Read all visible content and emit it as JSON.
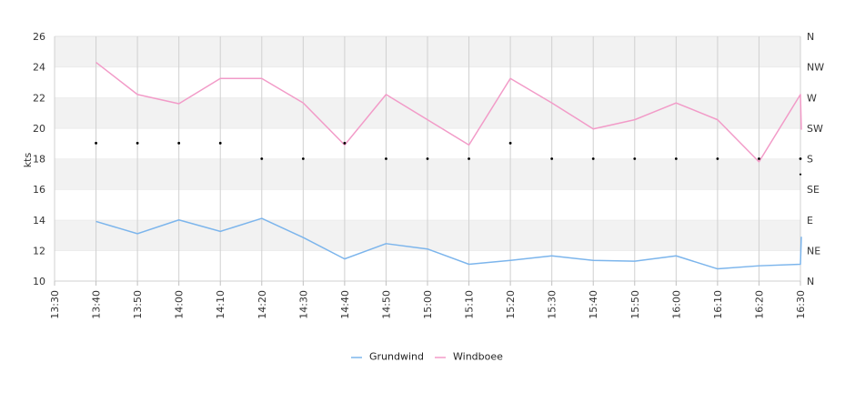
{
  "chart_data": {
    "type": "line",
    "title": "",
    "xlabel": "",
    "ylabel": "kts",
    "ylim": [
      10,
      26
    ],
    "yticks": [
      10,
      12,
      14,
      16,
      18,
      20,
      22,
      24,
      26
    ],
    "x_ticks": [
      "13:30",
      "13:40",
      "13:50",
      "14:00",
      "14:10",
      "14:20",
      "14:30",
      "14:40",
      "14:50",
      "15:00",
      "15:10",
      "15:20",
      "15:30",
      "15:40",
      "15:50",
      "16:00",
      "16:10",
      "16:20",
      "16:30"
    ],
    "right_axis": {
      "ticks": [
        "N",
        "NE",
        "E",
        "SE",
        "S",
        "SW",
        "W",
        "NW",
        "N"
      ],
      "values": [
        0,
        45,
        90,
        135,
        180,
        225,
        270,
        315,
        360
      ]
    },
    "x": [
      "13:40",
      "13:50",
      "14:00",
      "14:10",
      "14:20",
      "14:30",
      "14:40",
      "14:50",
      "15:00",
      "15:10",
      "15:20",
      "15:30",
      "15:40",
      "15:50",
      "16:00",
      "16:10",
      "16:20",
      "16:30"
    ],
    "series": [
      {
        "name": "Grundwind",
        "color": "#7cb5ec",
        "values": [
          13.9,
          13.1,
          14.0,
          13.25,
          14.1,
          12.85,
          11.45,
          12.45,
          12.1,
          11.1,
          11.35,
          11.65,
          11.35,
          11.3,
          11.65,
          10.8,
          11.0,
          11.1
        ],
        "end_value": 12.9
      },
      {
        "name": "Windboee",
        "color": "#f29bc8",
        "values": [
          24.3,
          22.2,
          21.6,
          23.25,
          23.25,
          21.65,
          18.9,
          22.2,
          20.55,
          18.9,
          23.25,
          21.65,
          19.95,
          20.55,
          21.65,
          20.55,
          17.8,
          22.2
        ],
        "end_value": 19.9
      }
    ],
    "direction": {
      "name": "Richtung",
      "values": [
        203,
        203,
        203,
        203,
        180,
        180,
        203,
        180,
        180,
        180,
        203,
        180,
        180,
        180,
        180,
        180,
        180,
        180
      ],
      "end_value": 157
    },
    "grid": true,
    "legend_position": "bottom-center"
  }
}
